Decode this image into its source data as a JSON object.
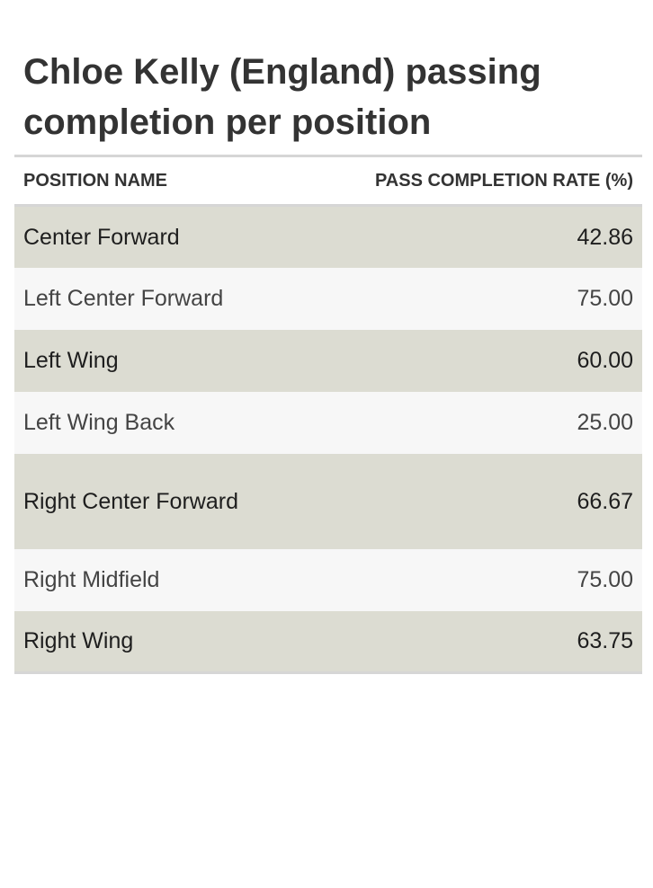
{
  "chart_data": {
    "type": "table",
    "title": "Chloe Kelly (England) passing completion per position",
    "columns": [
      "POSITION NAME",
      "PASS COMPLETION RATE (%)"
    ],
    "rows": [
      {
        "position": "Center Forward",
        "rate": "42.86"
      },
      {
        "position": "Left Center Forward",
        "rate": "75.00"
      },
      {
        "position": "Left Wing",
        "rate": "60.00"
      },
      {
        "position": "Left Wing Back",
        "rate": "25.00"
      },
      {
        "position": "Right Center Forward",
        "rate": "66.67"
      },
      {
        "position": "Right Midfield",
        "rate": "75.00"
      },
      {
        "position": "Right Wing",
        "rate": "63.75"
      }
    ]
  }
}
